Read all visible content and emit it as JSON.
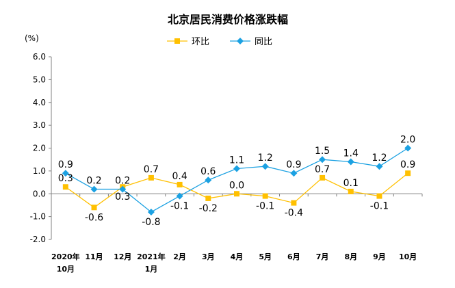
{
  "chart_data": {
    "type": "line",
    "title": "北京居民消费价格涨跌幅",
    "ylabel": "(%)",
    "ylim": [
      -2.0,
      6.0
    ],
    "yticks": [
      "6.0",
      "5.0",
      "4.0",
      "3.0",
      "2.0",
      "1.0",
      "0.0",
      "-1.0",
      "-2.0"
    ],
    "ytick_values": [
      6,
      5,
      4,
      3,
      2,
      1,
      0,
      -1,
      -2
    ],
    "categories": [
      [
        "2020年",
        "10月"
      ],
      [
        "11月"
      ],
      [
        "12月"
      ],
      [
        "2021年",
        "1月"
      ],
      [
        "2月"
      ],
      [
        "3月"
      ],
      [
        "4月"
      ],
      [
        "5月"
      ],
      [
        "6月"
      ],
      [
        "7月"
      ],
      [
        "8月"
      ],
      [
        "9月"
      ],
      [
        "10月"
      ]
    ],
    "legend_position": "top-center",
    "series": [
      {
        "name": "环比",
        "color": "#FFC000",
        "marker": "square",
        "values": [
          0.3,
          -0.6,
          0.3,
          0.7,
          0.4,
          -0.2,
          0.0,
          -0.1,
          -0.4,
          0.7,
          0.1,
          -0.1,
          0.9
        ],
        "labels": [
          "0.3",
          "-0.6",
          "0.3",
          "0.7",
          "0.4",
          "-0.2",
          "0.0",
          "-0.1",
          "-0.4",
          "0.7",
          "0.1",
          "-0.1",
          "0.9"
        ]
      },
      {
        "name": "同比",
        "color": "#1BA1E2",
        "marker": "diamond",
        "values": [
          0.9,
          0.2,
          0.2,
          -0.8,
          -0.1,
          0.6,
          1.1,
          1.2,
          0.9,
          1.5,
          1.4,
          1.2,
          2.0
        ],
        "labels": [
          "0.9",
          "0.2",
          "0.2",
          "-0.8",
          "-0.1",
          "0.6",
          "1.1",
          "1.2",
          "0.9",
          "1.5",
          "1.4",
          "1.2",
          "2.0"
        ]
      }
    ]
  }
}
